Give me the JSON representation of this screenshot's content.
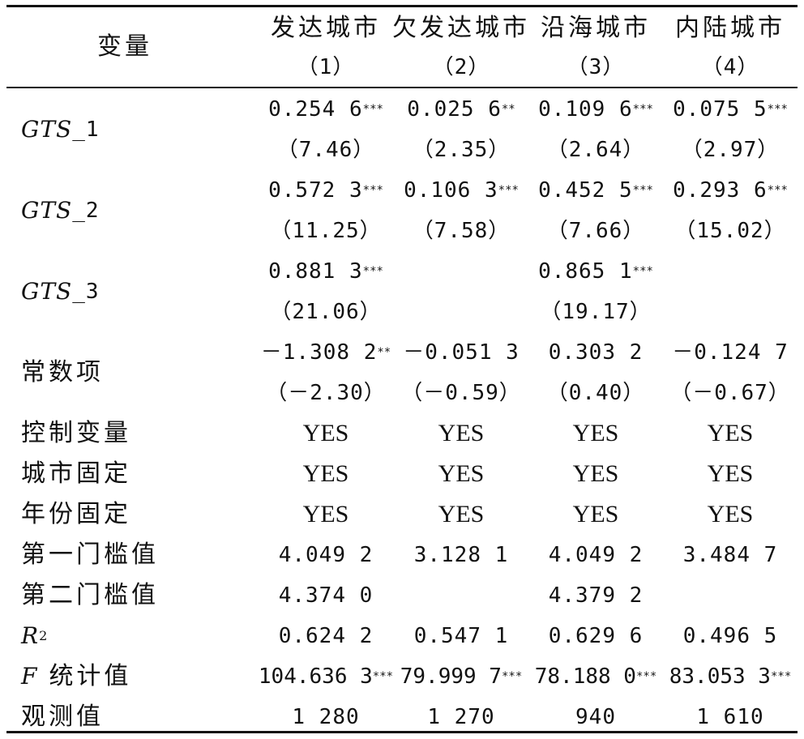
{
  "table": {
    "corner": "变量",
    "columns": [
      {
        "name": "发达城市",
        "num": "（1）"
      },
      {
        "name": "欠发达城市",
        "num": "（2）"
      },
      {
        "name": "沿海城市",
        "num": "（3）"
      },
      {
        "name": "内陆城市",
        "num": "（4）"
      }
    ],
    "gts_rows": [
      {
        "label_main": "GTS",
        "label_sub": "_1",
        "coefs": [
          {
            "v": "0.254 6",
            "s": "***"
          },
          {
            "v": "0.025 6",
            "s": "**"
          },
          {
            "v": "0.109 6",
            "s": "***"
          },
          {
            "v": "0.075 5",
            "s": "***"
          }
        ],
        "tstats": [
          "（7.46）",
          "（2.35）",
          "（2.64）",
          "（2.97）"
        ]
      },
      {
        "label_main": "GTS",
        "label_sub": "_2",
        "coefs": [
          {
            "v": "0.572 3",
            "s": "***"
          },
          {
            "v": "0.106 3",
            "s": "***"
          },
          {
            "v": "0.452 5",
            "s": "***"
          },
          {
            "v": "0.293 6",
            "s": "***"
          }
        ],
        "tstats": [
          "（11.25）",
          "（7.58）",
          "（7.66）",
          "（15.02）"
        ]
      },
      {
        "label_main": "GTS",
        "label_sub": "_3",
        "coefs": [
          {
            "v": "0.881 3",
            "s": "***"
          },
          {
            "v": "",
            "s": ""
          },
          {
            "v": "0.865 1",
            "s": "***"
          },
          {
            "v": "",
            "s": ""
          }
        ],
        "tstats": [
          "（21.06）",
          "",
          "（19.17）",
          ""
        ]
      },
      {
        "label_main": "常数项",
        "label_sub": "",
        "coefs": [
          {
            "v": "－1.308 2",
            "s": "**"
          },
          {
            "v": "－0.051 3",
            "s": ""
          },
          {
            "v": "0.303 2",
            "s": ""
          },
          {
            "v": "－0.124 7",
            "s": ""
          }
        ],
        "tstats": [
          "（－2.30）",
          "（－0.59）",
          "（0.40）",
          "（－0.67）"
        ]
      }
    ],
    "simple_rows": [
      {
        "label": "控制变量",
        "vals": [
          "YES",
          "YES",
          "YES",
          "YES"
        ],
        "kind": "yes"
      },
      {
        "label": "城市固定",
        "vals": [
          "YES",
          "YES",
          "YES",
          "YES"
        ],
        "kind": "yes"
      },
      {
        "label": "年份固定",
        "vals": [
          "YES",
          "YES",
          "YES",
          "YES"
        ],
        "kind": "yes"
      },
      {
        "label": "第一门槛值",
        "vals": [
          "4.049 2",
          "3.128 1",
          "4.049 2",
          "3.484 7"
        ],
        "kind": "num"
      },
      {
        "label": "第二门槛值",
        "vals": [
          "4.374 0",
          "",
          "4.379 2",
          ""
        ],
        "kind": "num"
      }
    ],
    "r2": {
      "label": "R",
      "sup": "2",
      "vals": [
        "0.624 2",
        "0.547 1",
        "0.629 6",
        "0.496 5"
      ]
    },
    "fstat": {
      "label_f": "F",
      "label_rest": "统计值",
      "vals": [
        {
          "v": "104.636 3",
          "s": "***"
        },
        {
          "v": "79.999 7",
          "s": "***"
        },
        {
          "v": "78.188 0",
          "s": "***"
        },
        {
          "v": "83.053 3",
          "s": "***"
        }
      ]
    },
    "obs": {
      "label": "观测值",
      "vals": [
        "1 280",
        "1 270",
        "940",
        "1 610"
      ]
    }
  }
}
